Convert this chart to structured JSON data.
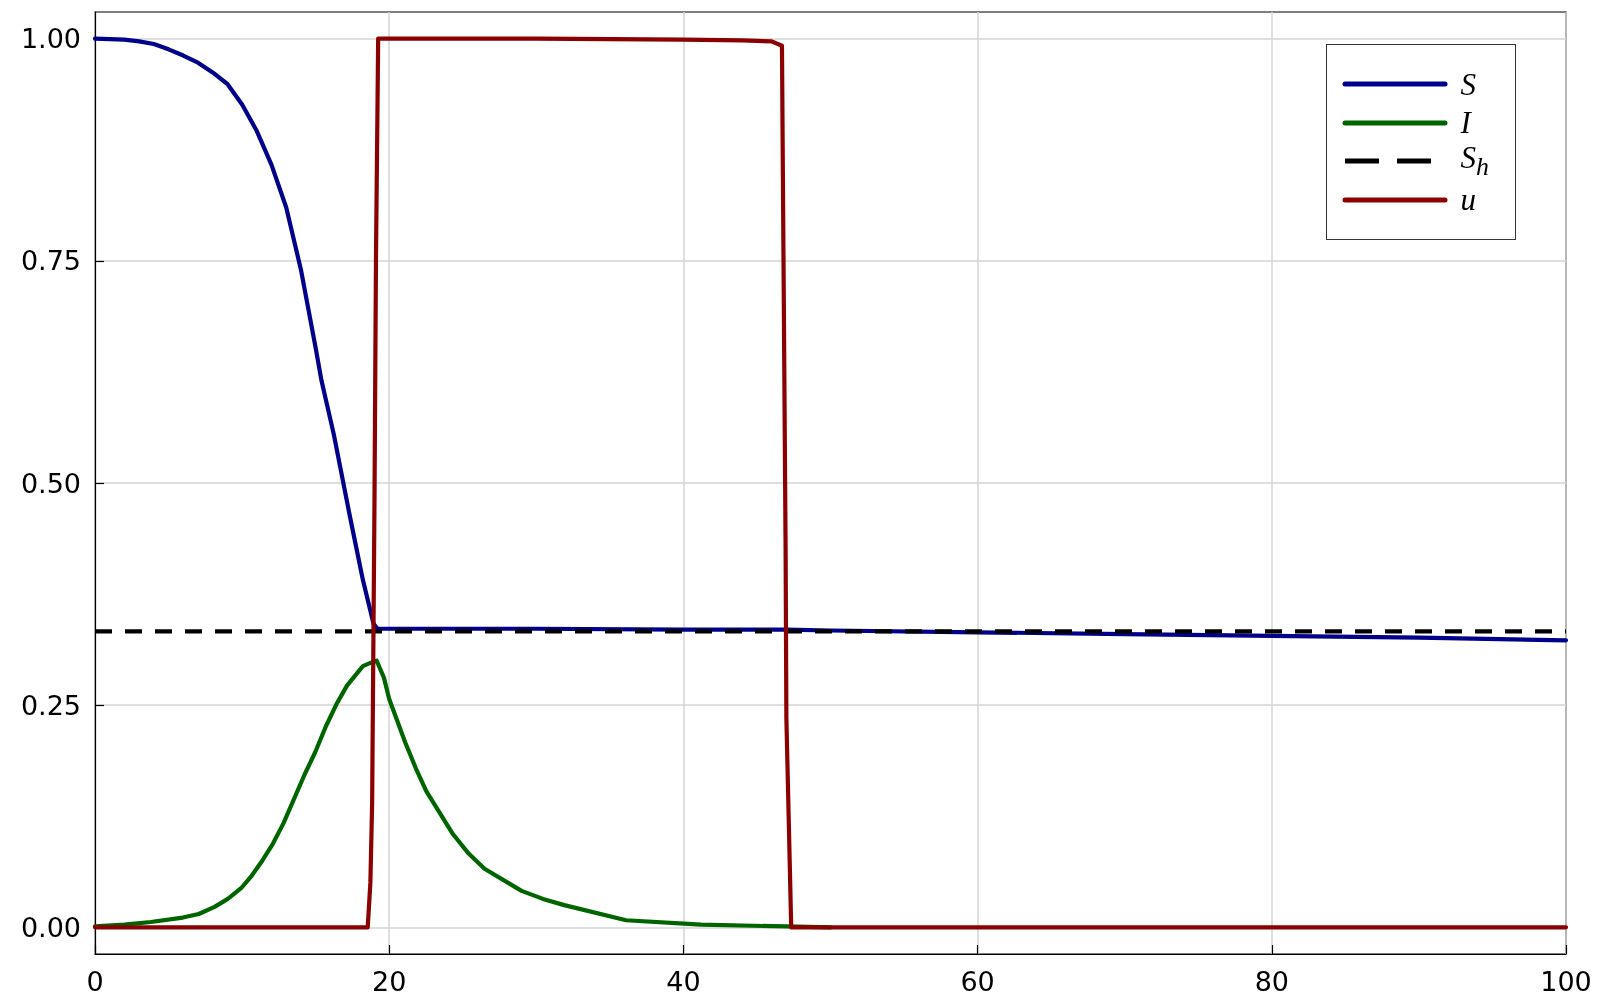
{
  "chart_data": {
    "type": "line",
    "xlim": [
      0,
      100
    ],
    "xticks": [
      0,
      20,
      40,
      60,
      80,
      100
    ],
    "ylim": [
      -0.03,
      1.03
    ],
    "yticks": [
      {
        "value": 0,
        "label": "0.00"
      },
      0.25,
      {
        "value": 0.5,
        "label": "0.50"
      },
      0.75,
      {
        "value": 1,
        "label": "1.00"
      }
    ],
    "grid": true,
    "legend": "top right",
    "series": [
      {
        "name": "S",
        "color": "#00008b",
        "x": [
          0,
          2,
          3,
          4,
          5,
          6,
          7,
          8,
          9,
          10,
          11,
          12,
          13,
          14,
          15,
          15.4,
          16.23,
          17.31,
          18.21,
          18.93,
          19.2,
          25,
          30,
          40,
          47,
          50,
          60,
          70,
          80,
          90,
          100
        ],
        "values": [
          1.0,
          0.999,
          0.997,
          0.994,
          0.988,
          0.981,
          0.973,
          0.962,
          0.949,
          0.926,
          0.896,
          0.858,
          0.81,
          0.74,
          0.652,
          0.615,
          0.555,
          0.464,
          0.391,
          0.342,
          0.336,
          0.336,
          0.336,
          0.335,
          0.335,
          0.334,
          0.332,
          0.33,
          0.328,
          0.326,
          0.323
        ]
      },
      {
        "name": "I",
        "color": "#006400",
        "x": [
          0,
          2,
          3.8,
          5.97,
          7.05,
          8.13,
          9.03,
          9.93,
          10.65,
          11.37,
          12.09,
          12.81,
          14.25,
          14.97,
          15.69,
          16.41,
          17.13,
          18.21,
          18.93,
          19.15,
          19.64,
          20.0,
          21.09,
          21.81,
          22.53,
          24.33,
          25.4,
          26.48,
          29.0,
          30.45,
          31.9,
          36.1,
          41.2,
          47,
          50
        ],
        "values": [
          0.001,
          0.003,
          0.006,
          0.011,
          0.015,
          0.023,
          0.032,
          0.044,
          0.058,
          0.075,
          0.094,
          0.117,
          0.172,
          0.197,
          0.226,
          0.251,
          0.272,
          0.294,
          0.299,
          0.3,
          0.281,
          0.257,
          0.208,
          0.179,
          0.153,
          0.105,
          0.083,
          0.066,
          0.041,
          0.032,
          0.025,
          0.008,
          0.003,
          0.001,
          0
        ]
      },
      {
        "name": "S$_{h}$",
        "color": "#000000",
        "line_style": "dashed",
        "x": [
          0,
          100
        ],
        "values": [
          0.333,
          0.333
        ]
      },
      {
        "name": "u",
        "color": "#8b0000",
        "x": [
          0,
          18.54,
          18.72,
          18.84,
          19.0,
          19.1,
          19.25,
          30,
          40,
          44,
          46,
          46.7,
          46.95,
          47,
          47.33,
          100
        ],
        "values": [
          0,
          0,
          0.05,
          0.14,
          0.48,
          0.75,
          1,
          1,
          0.999,
          0.998,
          0.997,
          0.992,
          0.42,
          0.236,
          0,
          0
        ]
      }
    ]
  }
}
